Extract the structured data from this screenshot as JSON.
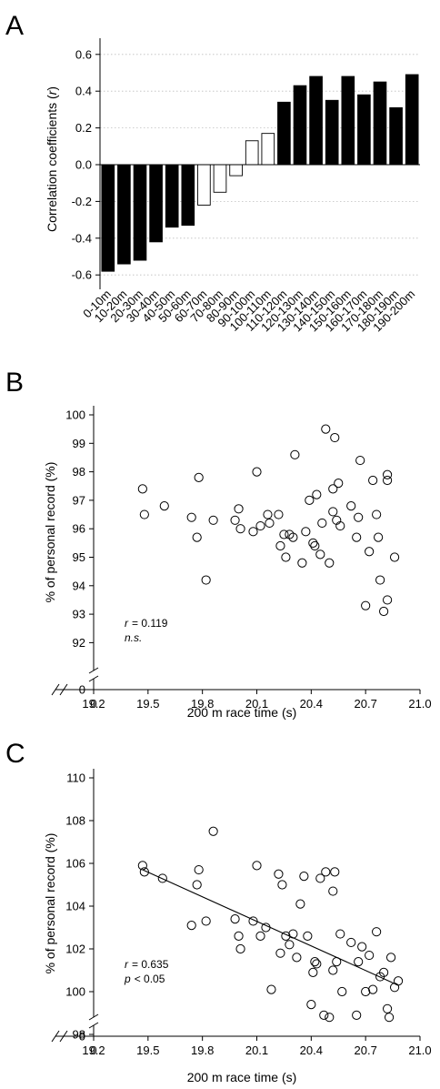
{
  "chart_data": [
    {
      "panel": "A",
      "type": "bar",
      "ylabel": "Correlation coefficients (r)",
      "ylim": [
        -0.7,
        0.7
      ],
      "yticks": [
        "0.6",
        "0.4",
        "0.2",
        "0.0",
        "-0.2",
        "-0.4",
        "-0.6"
      ],
      "categories": [
        "0-10m",
        "10-20m",
        "20-30m",
        "30-40m",
        "40-50m",
        "50-60m",
        "60-70m",
        "70-80m",
        "80-90m",
        "90-100m",
        "100-110m",
        "110-120m",
        "120-130m",
        "130-140m",
        "140-150m",
        "150-160m",
        "160-170m",
        "170-180m",
        "180-190m",
        "190-200m"
      ],
      "values": [
        -0.58,
        -0.54,
        -0.52,
        -0.42,
        -0.34,
        -0.33,
        -0.22,
        -0.15,
        -0.06,
        0.13,
        0.17,
        0.34,
        0.43,
        0.48,
        0.35,
        0.48,
        0.38,
        0.45,
        0.31,
        0.49
      ],
      "significant": [
        true,
        true,
        true,
        true,
        true,
        true,
        false,
        false,
        false,
        false,
        false,
        true,
        true,
        true,
        true,
        true,
        true,
        true,
        true,
        true
      ],
      "colors": {
        "significant": "#000000",
        "nonsignificant": "#ffffff"
      },
      "grid": "dotted-horizontal"
    },
    {
      "panel": "B",
      "type": "scatter",
      "xlabel": "200 m race time (s)",
      "ylabel": "% of personal record (%)",
      "xlim": [
        19.2,
        21.0
      ],
      "ylim": [
        91.5,
        100.2
      ],
      "xticks": [
        "19.2",
        "19.5",
        "19.8",
        "20.1",
        "20.4",
        "20.7",
        "21.0"
      ],
      "yticks": [
        "100",
        "99",
        "98",
        "97",
        "96",
        "95",
        "94",
        "93",
        "92"
      ],
      "zero_label": "0",
      "annotation": {
        "r": "r",
        "r_value": "= 0.119",
        "sig": "n.s."
      },
      "points": [
        [
          19.47,
          97.4
        ],
        [
          19.48,
          96.5
        ],
        [
          19.59,
          96.8
        ],
        [
          19.74,
          96.4
        ],
        [
          19.77,
          95.7
        ],
        [
          19.78,
          97.8
        ],
        [
          19.82,
          94.2
        ],
        [
          19.86,
          96.3
        ],
        [
          19.98,
          96.3
        ],
        [
          20.0,
          96.7
        ],
        [
          20.01,
          96.0
        ],
        [
          20.08,
          95.9
        ],
        [
          20.1,
          98.0
        ],
        [
          20.12,
          96.1
        ],
        [
          20.16,
          96.5
        ],
        [
          20.17,
          96.2
        ],
        [
          20.22,
          96.5
        ],
        [
          20.23,
          95.4
        ],
        [
          20.25,
          95.8
        ],
        [
          20.26,
          95.0
        ],
        [
          20.28,
          95.8
        ],
        [
          20.3,
          95.7
        ],
        [
          20.31,
          98.6
        ],
        [
          20.35,
          94.8
        ],
        [
          20.37,
          95.9
        ],
        [
          20.39,
          97.0
        ],
        [
          20.41,
          95.5
        ],
        [
          20.42,
          95.4
        ],
        [
          20.43,
          97.2
        ],
        [
          20.45,
          95.1
        ],
        [
          20.46,
          96.2
        ],
        [
          20.48,
          99.5
        ],
        [
          20.5,
          94.8
        ],
        [
          20.52,
          96.6
        ],
        [
          20.52,
          97.4
        ],
        [
          20.53,
          99.2
        ],
        [
          20.54,
          96.3
        ],
        [
          20.55,
          97.6
        ],
        [
          20.56,
          96.1
        ],
        [
          20.62,
          96.8
        ],
        [
          20.65,
          95.7
        ],
        [
          20.66,
          96.4
        ],
        [
          20.67,
          98.4
        ],
        [
          20.7,
          93.3
        ],
        [
          20.72,
          95.2
        ],
        [
          20.74,
          97.7
        ],
        [
          20.76,
          96.5
        ],
        [
          20.77,
          95.7
        ],
        [
          20.78,
          94.2
        ],
        [
          20.8,
          93.1
        ],
        [
          20.82,
          97.7
        ],
        [
          20.82,
          93.5
        ],
        [
          20.82,
          97.9
        ],
        [
          20.86,
          95.0
        ]
      ]
    },
    {
      "panel": "C",
      "type": "scatter",
      "xlabel": "200 m race time (s)",
      "ylabel": "% of personal record (%)",
      "xlim": [
        19.2,
        21.0
      ],
      "ylim": [
        97.2,
        110.0
      ],
      "xticks": [
        "19.2",
        "19.5",
        "19.8",
        "20.1",
        "20.4",
        "20.7",
        "21.0"
      ],
      "yticks": [
        "110",
        "108",
        "106",
        "104",
        "102",
        "100",
        "98"
      ],
      "zero_label": "0",
      "annotation": {
        "r": "r",
        "r_value": "= 0.635",
        "p": "p",
        "p_value": "< 0.05"
      },
      "regression": {
        "x": [
          19.47,
          20.88
        ],
        "y": [
          105.7,
          100.3
        ]
      },
      "points": [
        [
          19.47,
          105.9
        ],
        [
          19.48,
          105.6
        ],
        [
          19.58,
          105.3
        ],
        [
          19.74,
          103.1
        ],
        [
          19.77,
          105.0
        ],
        [
          19.78,
          105.7
        ],
        [
          19.82,
          103.3
        ],
        [
          19.86,
          107.5
        ],
        [
          19.98,
          103.4
        ],
        [
          20.0,
          102.6
        ],
        [
          20.01,
          102.0
        ],
        [
          20.08,
          103.3
        ],
        [
          20.1,
          105.9
        ],
        [
          20.12,
          102.6
        ],
        [
          20.15,
          103.0
        ],
        [
          20.18,
          100.1
        ],
        [
          20.22,
          105.5
        ],
        [
          20.23,
          101.8
        ],
        [
          20.24,
          105.0
        ],
        [
          20.26,
          102.6
        ],
        [
          20.28,
          102.2
        ],
        [
          20.3,
          102.7
        ],
        [
          20.32,
          101.6
        ],
        [
          20.34,
          104.1
        ],
        [
          20.36,
          105.4
        ],
        [
          20.38,
          102.6
        ],
        [
          20.4,
          99.4
        ],
        [
          20.41,
          100.9
        ],
        [
          20.42,
          101.4
        ],
        [
          20.43,
          101.3
        ],
        [
          20.45,
          105.3
        ],
        [
          20.47,
          98.9
        ],
        [
          20.48,
          105.6
        ],
        [
          20.5,
          98.8
        ],
        [
          20.52,
          101.0
        ],
        [
          20.52,
          104.7
        ],
        [
          20.53,
          105.6
        ],
        [
          20.54,
          101.4
        ],
        [
          20.56,
          102.7
        ],
        [
          20.57,
          100.0
        ],
        [
          20.62,
          102.3
        ],
        [
          20.65,
          98.9
        ],
        [
          20.66,
          101.4
        ],
        [
          20.68,
          102.1
        ],
        [
          20.7,
          100.0
        ],
        [
          20.72,
          101.7
        ],
        [
          20.74,
          100.1
        ],
        [
          20.76,
          102.8
        ],
        [
          20.78,
          100.7
        ],
        [
          20.8,
          100.9
        ],
        [
          20.82,
          99.2
        ],
        [
          20.83,
          98.8
        ],
        [
          20.84,
          101.6
        ],
        [
          20.86,
          100.2
        ],
        [
          20.88,
          100.5
        ]
      ]
    }
  ]
}
